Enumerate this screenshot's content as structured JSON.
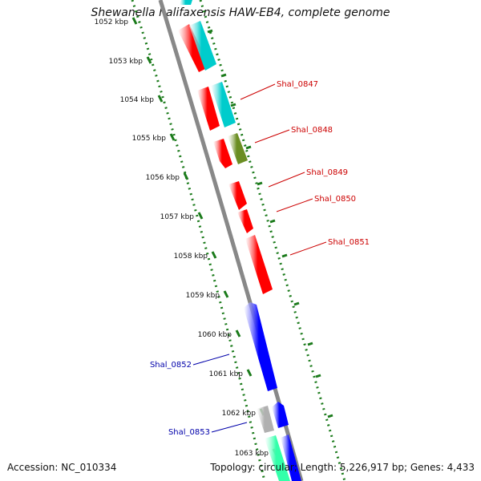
{
  "title": "Shewanella halifaxensis HAW-EB4, complete genome",
  "accession_text": "Accession: NC_010334",
  "topology_text": "Topology: circular; Length: 5,226,917 bp; Genes: 4,433",
  "kbp_labels": [
    "1052 kbp",
    "1053 kbp",
    "1054 kbp",
    "1055 kbp",
    "1056 kbp",
    "1057 kbp",
    "1058 kbp",
    "1059 kbp",
    "1060 kbp",
    "1061 kbp",
    "1062 kbp",
    "1063 kbp"
  ],
  "gene_labels": [
    {
      "name": "Shal_0847",
      "strand": "+",
      "color": "#cc0000"
    },
    {
      "name": "Shal_0848",
      "strand": "+",
      "color": "#cc0000"
    },
    {
      "name": "Shal_0849",
      "strand": "+",
      "color": "#cc0000"
    },
    {
      "name": "Shal_0850",
      "strand": "+",
      "color": "#cc0000"
    },
    {
      "name": "Shal_0851",
      "strand": "+",
      "color": "#cc0000"
    },
    {
      "name": "Shal_0852",
      "strand": "-",
      "color": "#0000aa"
    },
    {
      "name": "Shal_0853",
      "strand": "-",
      "color": "#0000aa"
    }
  ],
  "colors": {
    "backbone": "#888888",
    "red_gene": "#ff0000",
    "cyan_gene": "#00cccc",
    "olive_gene": "#6b8e23",
    "blue_gene": "#0000ff",
    "gray_gene": "#b0b0b0",
    "mint_gene": "#33ffaa",
    "ticks": "#1a7a1a"
  }
}
